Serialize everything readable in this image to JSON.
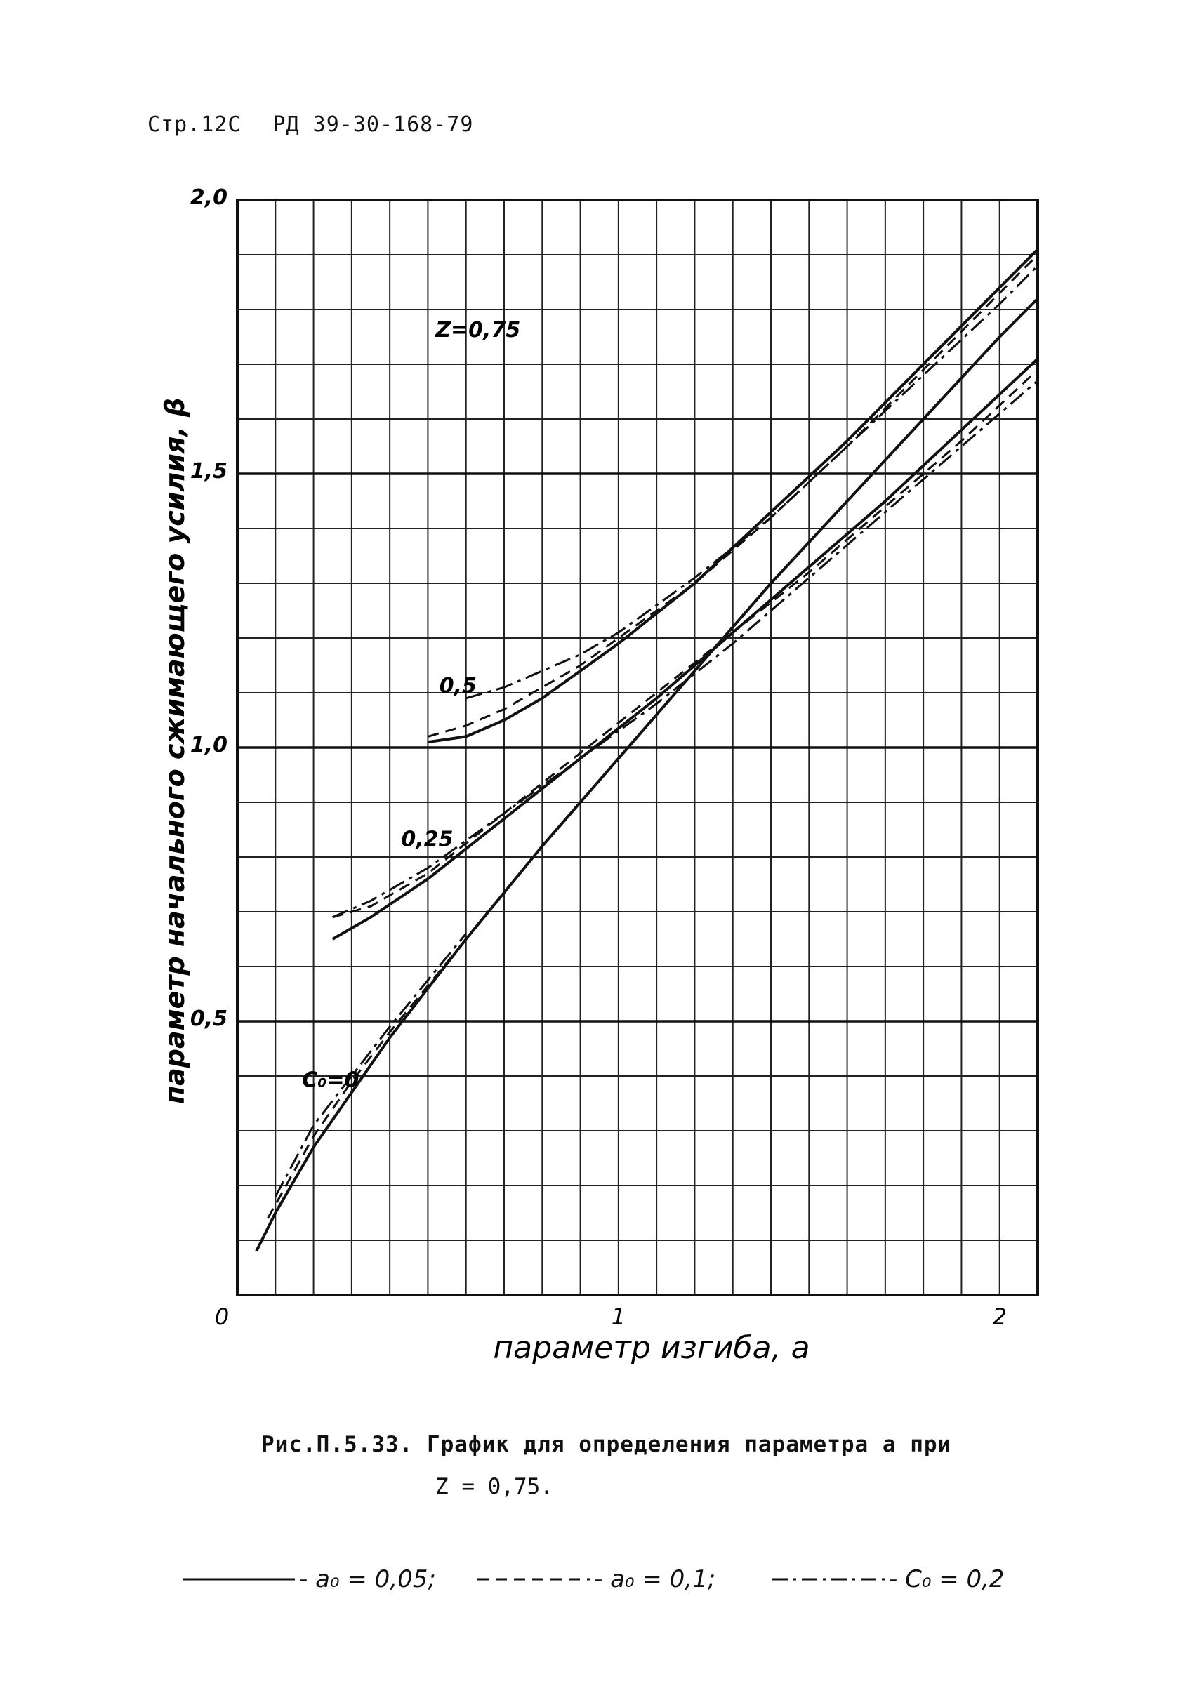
{
  "header": {
    "page": "Стр.12С",
    "doc": "РД 39-30-168-79"
  },
  "chart_data": {
    "type": "line",
    "xlabel": "параметр изгиба, a",
    "ylabel": "параметр начального сжимающего усилия, β",
    "xlim": [
      0,
      2.1
    ],
    "ylim": [
      0,
      2.0
    ],
    "x_ticks": [
      {
        "value": 0,
        "label": "0"
      },
      {
        "value": 1,
        "label": "1"
      },
      {
        "value": 2,
        "label": "2"
      }
    ],
    "y_ticks": [
      {
        "value": 0.5,
        "label": "0,5"
      },
      {
        "value": 1.0,
        "label": "1,0"
      },
      {
        "value": 1.5,
        "label": "1,5"
      },
      {
        "value": 2.0,
        "label": "2,0"
      }
    ],
    "grid": true,
    "annotations": [
      {
        "text": "Z=0,75",
        "x": 0.52,
        "y": 1.75
      },
      {
        "text": "0,5",
        "x": 0.53,
        "y": 1.1
      },
      {
        "text": "0,25",
        "x": 0.43,
        "y": 0.82
      },
      {
        "text": "C₀=0",
        "x": 0.17,
        "y": 0.38
      }
    ],
    "series": [
      {
        "name": "a₀=0,05",
        "style": "solid",
        "group": "C₀=0",
        "points": [
          [
            0.05,
            0.08
          ],
          [
            0.1,
            0.15
          ],
          [
            0.2,
            0.27
          ],
          [
            0.3,
            0.37
          ],
          [
            0.4,
            0.47
          ],
          [
            0.6,
            0.65
          ],
          [
            0.8,
            0.82
          ],
          [
            1.0,
            0.98
          ],
          [
            1.2,
            1.14
          ],
          [
            1.4,
            1.3
          ],
          [
            1.6,
            1.45
          ],
          [
            1.8,
            1.6
          ],
          [
            2.0,
            1.75
          ],
          [
            2.1,
            1.82
          ]
        ]
      },
      {
        "name": "a₀=0,1",
        "style": "dashed",
        "group": "C₀=0",
        "points": [
          [
            0.08,
            0.14
          ],
          [
            0.2,
            0.29
          ],
          [
            0.3,
            0.39
          ],
          [
            0.4,
            0.48
          ],
          [
            0.6,
            0.65
          ],
          [
            0.8,
            0.82
          ],
          [
            1.0,
            0.98
          ]
        ]
      },
      {
        "name": "C₀=0,2",
        "style": "dashdot",
        "group": "C₀=0",
        "points": [
          [
            0.1,
            0.18
          ],
          [
            0.2,
            0.31
          ],
          [
            0.3,
            0.4
          ],
          [
            0.4,
            0.49
          ],
          [
            0.6,
            0.66
          ]
        ]
      },
      {
        "name": "a₀=0,05",
        "style": "solid",
        "group": "C₀=0,25",
        "points": [
          [
            0.25,
            0.65
          ],
          [
            0.35,
            0.69
          ],
          [
            0.5,
            0.76
          ],
          [
            0.7,
            0.87
          ],
          [
            0.9,
            0.98
          ],
          [
            1.1,
            1.09
          ],
          [
            1.3,
            1.21
          ],
          [
            1.5,
            1.33
          ],
          [
            1.7,
            1.45
          ],
          [
            1.9,
            1.58
          ],
          [
            2.1,
            1.71
          ]
        ]
      },
      {
        "name": "a₀=0,1",
        "style": "dashed",
        "group": "C₀=0,25",
        "points": [
          [
            0.25,
            0.69
          ],
          [
            0.35,
            0.71
          ],
          [
            0.5,
            0.77
          ],
          [
            0.7,
            0.88
          ],
          [
            0.9,
            0.99
          ],
          [
            1.1,
            1.1
          ],
          [
            1.3,
            1.21
          ],
          [
            1.5,
            1.32
          ],
          [
            1.7,
            1.44
          ],
          [
            1.9,
            1.56
          ],
          [
            2.1,
            1.69
          ]
        ]
      },
      {
        "name": "C₀=0,2",
        "style": "dashdot",
        "group": "C₀=0,25",
        "points": [
          [
            0.25,
            0.69
          ],
          [
            0.35,
            0.72
          ],
          [
            0.5,
            0.78
          ],
          [
            0.7,
            0.88
          ],
          [
            0.9,
            0.98
          ],
          [
            1.1,
            1.08
          ],
          [
            1.3,
            1.19
          ],
          [
            1.5,
            1.31
          ],
          [
            1.7,
            1.43
          ],
          [
            1.9,
            1.55
          ],
          [
            2.1,
            1.67
          ]
        ]
      },
      {
        "name": "a₀=0,05",
        "style": "solid",
        "group": "C₀=0,5",
        "points": [
          [
            0.5,
            1.01
          ],
          [
            0.6,
            1.02
          ],
          [
            0.7,
            1.05
          ],
          [
            0.8,
            1.09
          ],
          [
            0.9,
            1.14
          ],
          [
            1.0,
            1.19
          ],
          [
            1.2,
            1.3
          ],
          [
            1.4,
            1.43
          ],
          [
            1.6,
            1.56
          ],
          [
            1.8,
            1.7
          ],
          [
            2.0,
            1.84
          ],
          [
            2.1,
            1.91
          ]
        ]
      },
      {
        "name": "a₀=0,1",
        "style": "dashed",
        "group": "C₀=0,5",
        "points": [
          [
            0.5,
            1.02
          ],
          [
            0.6,
            1.04
          ],
          [
            0.7,
            1.07
          ],
          [
            0.8,
            1.11
          ],
          [
            0.9,
            1.15
          ],
          [
            1.0,
            1.2
          ],
          [
            1.2,
            1.3
          ],
          [
            1.4,
            1.42
          ],
          [
            1.6,
            1.55
          ],
          [
            1.8,
            1.69
          ],
          [
            2.0,
            1.83
          ],
          [
            2.1,
            1.9
          ]
        ]
      },
      {
        "name": "C₀=0,2",
        "style": "dashdot",
        "group": "C₀=0,5",
        "points": [
          [
            0.6,
            1.09
          ],
          [
            0.7,
            1.11
          ],
          [
            0.8,
            1.14
          ],
          [
            0.9,
            1.17
          ],
          [
            1.0,
            1.21
          ],
          [
            1.2,
            1.31
          ],
          [
            1.4,
            1.42
          ],
          [
            1.6,
            1.55
          ],
          [
            1.8,
            1.68
          ],
          [
            2.0,
            1.81
          ],
          [
            2.1,
            1.88
          ]
        ]
      }
    ]
  },
  "caption": {
    "line1": "Рис.П.5.33. График для определения параметра a  при",
    "line2": "Z = 0,75."
  },
  "legend": [
    {
      "style": "solid",
      "label": "- a₀ = 0,05;"
    },
    {
      "style": "dashed",
      "label": "- a₀ = 0,1;"
    },
    {
      "style": "dashdot",
      "label": "- C₀ = 0,2"
    }
  ]
}
